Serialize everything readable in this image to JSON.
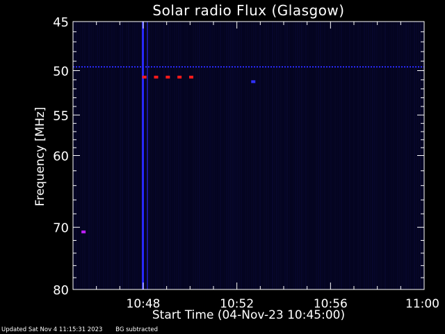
{
  "chart_data": {
    "type": "heatmap",
    "title": "Solar radio Flux (Glasgow)",
    "xlabel": "Start Time (04-Nov-23 10:45:00)",
    "ylabel": "Frequency [MHz]",
    "x_ticks": [
      "10:48",
      "10:52",
      "10:56",
      "11:00"
    ],
    "x_tick_minutes": [
      3,
      7,
      11,
      15
    ],
    "xlim_minutes": [
      0,
      15
    ],
    "y_ticks": [
      45,
      50,
      55,
      60,
      70,
      80
    ],
    "ylim": [
      45,
      80
    ],
    "y_scale": "log",
    "background_color": "#04041e",
    "features": [
      {
        "kind": "broadband_burst",
        "minute": 3.0,
        "freq_range": [
          45,
          80
        ],
        "color": "#2828ff"
      },
      {
        "kind": "narrowband_line",
        "freq": 49.6,
        "minute_range": [
          0,
          15
        ],
        "color": "#2a2aff"
      },
      {
        "kind": "spot",
        "minute": 3.05,
        "freq": 50.7,
        "color": "#ff1a1a"
      },
      {
        "kind": "spot",
        "minute": 3.55,
        "freq": 50.7,
        "color": "#ff1a1a"
      },
      {
        "kind": "spot",
        "minute": 4.05,
        "freq": 50.7,
        "color": "#ff1a1a"
      },
      {
        "kind": "spot",
        "minute": 4.55,
        "freq": 50.7,
        "color": "#ff1a1a"
      },
      {
        "kind": "spot",
        "minute": 5.05,
        "freq": 50.7,
        "color": "#ff1a1a"
      },
      {
        "kind": "spot",
        "minute": 7.7,
        "freq": 51.2,
        "color": "#3030ff"
      },
      {
        "kind": "spot",
        "minute": 0.45,
        "freq": 70.7,
        "color": "#c020ff"
      }
    ]
  },
  "footer": {
    "updated": "Updated Sat Nov  4 11:15:31 2023",
    "note": "BG subtracted"
  }
}
